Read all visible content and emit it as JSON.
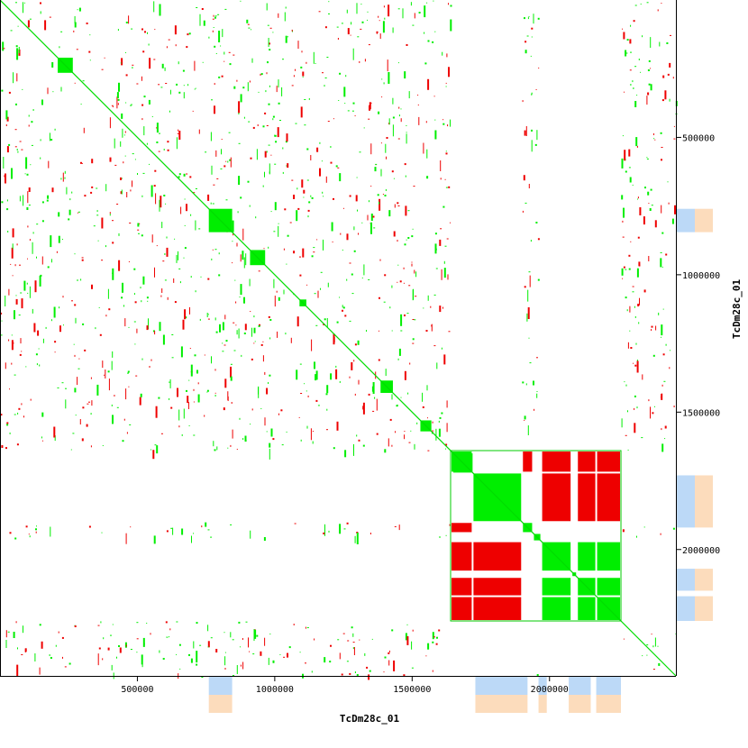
{
  "chart_data": {
    "type": "scatter",
    "title": "",
    "xlabel": "TcDm28c_01",
    "ylabel": "TcDm28c_01",
    "xlim": [
      0,
      2460000
    ],
    "ylim": [
      0,
      2460000
    ],
    "y_reversed": true,
    "x_ticks": [
      500000,
      1000000,
      1500000,
      2000000
    ],
    "y_ticks": [
      500000,
      1000000,
      1500000,
      2000000
    ],
    "x_tick_labels": [
      "500000",
      "1000000",
      "1500000",
      "2000000"
    ],
    "y_tick_labels": [
      "500000",
      "1000000",
      "1500000",
      "2000000"
    ],
    "grid": false,
    "series": [
      {
        "color": "#00ee00"
      },
      {
        "color": "#ee0000"
      }
    ],
    "diagonal": {
      "from": 0,
      "to": 2460000
    },
    "repeat_blocks": [
      {
        "start": 210000,
        "end": 265000
      },
      {
        "start": 760000,
        "end": 845000
      },
      {
        "start": 910000,
        "end": 965000
      },
      {
        "start": 1090000,
        "end": 1115000
      },
      {
        "start": 1385000,
        "end": 1430000
      },
      {
        "start": 1530000,
        "end": 1570000
      },
      {
        "start": 1650000,
        "end": 1720000
      }
    ],
    "highlight_box": {
      "x": [
        1640000,
        2260000
      ],
      "y": [
        1640000,
        2260000
      ]
    },
    "block_grid": {
      "boundaries": [
        1640000,
        1720000,
        1900000,
        1940000,
        1970000,
        2080000,
        2100000,
        2170000,
        2260000
      ],
      "pattern": [
        [
          "g",
          "w",
          "r",
          "w",
          "r",
          "w",
          "r",
          "r"
        ],
        [
          "w",
          "g",
          "w",
          "w",
          "r",
          "w",
          "r",
          "r"
        ],
        [
          "r",
          "w",
          "g",
          "w",
          "w",
          "w",
          "w",
          "w"
        ],
        [
          "w",
          "w",
          "w",
          "g",
          "w",
          "w",
          "w",
          "w"
        ],
        [
          "r",
          "r",
          "w",
          "w",
          "g",
          "w",
          "g",
          "g"
        ],
        [
          "w",
          "w",
          "w",
          "w",
          "w",
          "g",
          "w",
          "w"
        ],
        [
          "r",
          "r",
          "w",
          "w",
          "g",
          "w",
          "g",
          "g"
        ],
        [
          "r",
          "r",
          "w",
          "w",
          "g",
          "w",
          "g",
          "g"
        ]
      ]
    },
    "gap_regions": [
      {
        "start": 1640000,
        "end": 1900000
      },
      {
        "start": 1960000,
        "end": 2260000
      }
    ],
    "side_tracks": {
      "colors": [
        "#bcd9f7",
        "#fcdcbc"
      ],
      "y_segments": [
        {
          "start": 1730000,
          "end": 1920000
        },
        {
          "start": 2070000,
          "end": 2150000
        },
        {
          "start": 2170000,
          "end": 2260000
        },
        {
          "start": 760000,
          "end": 845000
        }
      ],
      "x_segments": [
        {
          "start": 1730000,
          "end": 1920000
        },
        {
          "start": 1960000,
          "end": 1990000
        },
        {
          "start": 2070000,
          "end": 2150000
        },
        {
          "start": 2170000,
          "end": 2260000
        },
        {
          "start": 760000,
          "end": 845000
        }
      ]
    }
  }
}
